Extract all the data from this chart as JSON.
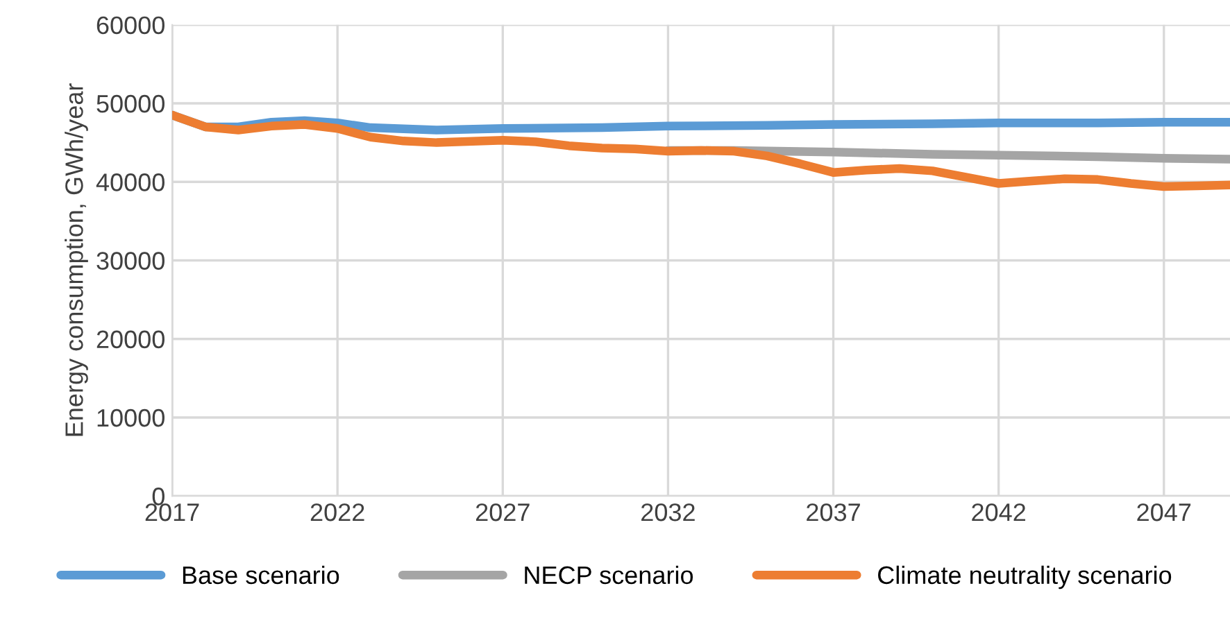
{
  "chart_data": {
    "type": "line",
    "ylabel": "Energy consumption, GWh/year",
    "xlim": [
      2017,
      2049
    ],
    "xticks": [
      2017,
      2022,
      2027,
      2032,
      2037,
      2042,
      2047
    ],
    "ylim": [
      0,
      60000
    ],
    "yticks": [
      0,
      10000,
      20000,
      30000,
      40000,
      50000,
      60000
    ],
    "grid": true,
    "legend": "bottom",
    "line_style": "solid",
    "marker": "none",
    "series": [
      {
        "name": "Base scenario",
        "color": "#5b9bd5",
        "x": [
          2017,
          2018,
          2019,
          2020,
          2021,
          2022,
          2023,
          2025,
          2027,
          2030,
          2032,
          2035,
          2037,
          2040,
          2042,
          2045,
          2047,
          2049
        ],
        "values": [
          48500,
          47000,
          47000,
          47600,
          47800,
          47500,
          46900,
          46600,
          46800,
          46900,
          47100,
          47200,
          47300,
          47400,
          47500,
          47500,
          47600,
          47600
        ]
      },
      {
        "name": "NECP scenario",
        "color": "#a5a5a5",
        "x": [
          2032,
          2034,
          2037,
          2040,
          2042,
          2045,
          2047,
          2049
        ],
        "values": [
          44000,
          44000,
          43800,
          43500,
          43400,
          43200,
          43000,
          42900
        ]
      },
      {
        "name": "Climate neutrality scenario",
        "color": "#ed7d31",
        "x": [
          2017,
          2018,
          2019,
          2020,
          2021,
          2022,
          2023,
          2024,
          2025,
          2027,
          2028,
          2029,
          2030,
          2031,
          2032,
          2033,
          2034,
          2035,
          2036,
          2037,
          2038,
          2039,
          2040,
          2041,
          2042,
          2043,
          2044,
          2045,
          2046,
          2047,
          2048,
          2049
        ],
        "values": [
          48500,
          47000,
          46600,
          47100,
          47300,
          46800,
          45700,
          45200,
          45000,
          45300,
          45100,
          44600,
          44300,
          44200,
          43900,
          44000,
          43900,
          43300,
          42300,
          41200,
          41500,
          41700,
          41400,
          40600,
          39800,
          40100,
          40400,
          40300,
          39800,
          39400,
          39500,
          39600
        ]
      }
    ]
  }
}
